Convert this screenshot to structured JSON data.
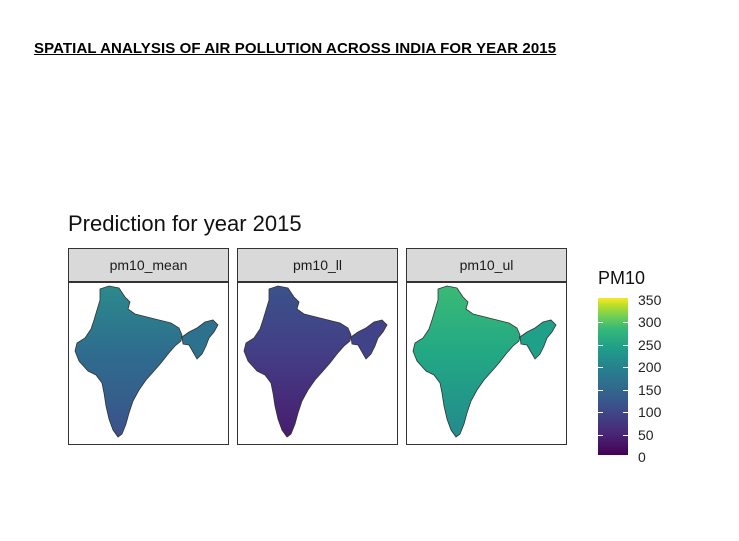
{
  "page_title": "SPATIAL ANALYSIS OF AIR POLLUTION ACROSS INDIA FOR YEAR 2015",
  "plot_title": "Prediction for year 2015",
  "panels": [
    {
      "label": "pm10_mean",
      "colors": {
        "north": "#2b8a8c",
        "central": "#2e6c8e",
        "west": "#355f8d",
        "south": "#3b528b",
        "east": "#2c728e"
      }
    },
    {
      "label": "pm10_ll",
      "colors": {
        "north": "#3b528b",
        "central": "#433e85",
        "west": "#472d7b",
        "south": "#481c6e",
        "east": "#404387"
      }
    },
    {
      "label": "pm10_ul",
      "colors": {
        "north": "#3aba76",
        "central": "#22a884",
        "west": "#2db27d",
        "south": "#238a8d",
        "east": "#1fa088"
      }
    }
  ],
  "legend": {
    "title": "PM10",
    "ticks": [
      "350",
      "300",
      "250",
      "200",
      "150",
      "100",
      "50",
      "0"
    ],
    "colormap": "viridis"
  }
}
